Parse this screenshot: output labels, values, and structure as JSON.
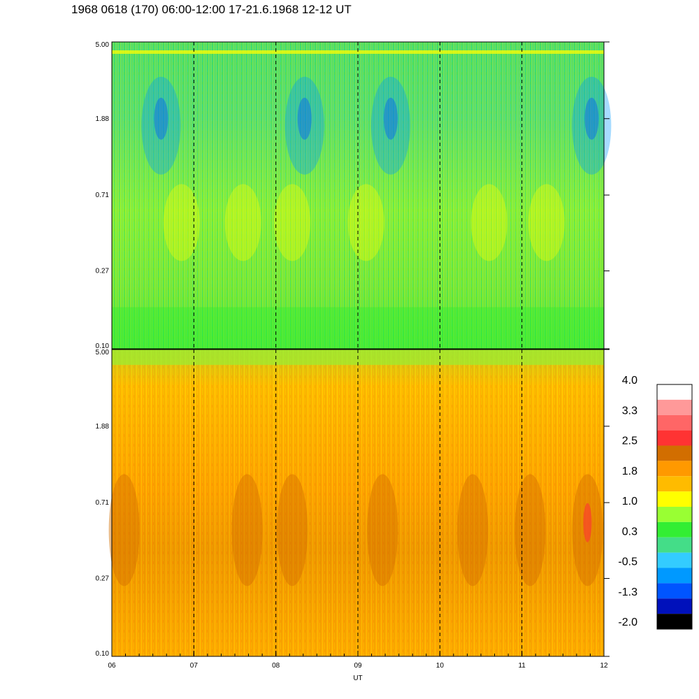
{
  "title": "1968 0618 (170) 06:00-12:00 17-21.6.1968  12-12 UT",
  "chart_data": [
    {
      "type": "heatmap",
      "panel": "upper",
      "x_range": [
        6,
        12
      ],
      "y_scale": "log",
      "y_range": [
        0.1,
        5.0
      ],
      "y_ticks": [
        "0.10",
        "0.27",
        "0.71",
        "1.88",
        "5.00"
      ],
      "y_tick_values": [
        0.1,
        0.27,
        0.71,
        1.88,
        5.0
      ],
      "dominant_levels": "green to yellow-green, blue patches near 1.88 around 06.6, 08.3, 09.4, 11.8",
      "typical_value_range": [
        -1.3,
        1.0
      ]
    },
    {
      "type": "heatmap",
      "panel": "lower",
      "x_range": [
        6,
        12
      ],
      "y_scale": "log",
      "y_range": [
        0.1,
        5.0
      ],
      "y_ticks": [
        "0.10",
        "0.27",
        "0.71",
        "1.88",
        "5.00"
      ],
      "y_tick_values": [
        0.1,
        0.27,
        0.71,
        1.88,
        5.0
      ],
      "dominant_levels": "orange and yellow, darker orange between 0.27 and 0.71",
      "typical_value_range": [
        0.3,
        2.5
      ]
    }
  ],
  "x_axis": {
    "label": "UT",
    "ticks": [
      "06",
      "07",
      "08",
      "09",
      "10",
      "11",
      "12"
    ],
    "tick_values": [
      6,
      7,
      8,
      9,
      10,
      11,
      12
    ],
    "dashed_hour_lines": [
      7,
      8,
      9,
      10,
      11
    ]
  },
  "colorbar": {
    "labels": [
      "4.0",
      "3.3",
      "2.5",
      "1.8",
      "1.0",
      "0.3",
      "-0.5",
      "-1.3",
      "-2.0"
    ],
    "colors_top_to_bottom": [
      "#ffffff",
      "#ff9999",
      "#ff6666",
      "#ff3333",
      "#d26e00",
      "#ff9900",
      "#ffbb00",
      "#ffff00",
      "#99ff33",
      "#33ee33",
      "#44dd88",
      "#33ccff",
      "#0099ff",
      "#0055ff",
      "#0011bb",
      "#000000"
    ]
  }
}
